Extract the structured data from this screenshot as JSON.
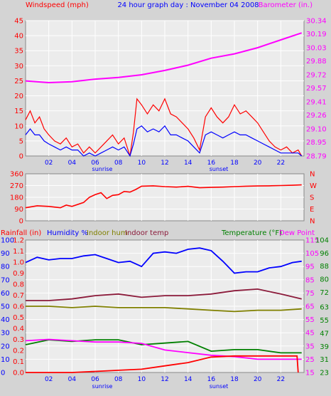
{
  "title": "24 hour graph day : November 04 2008",
  "colors": {
    "background": "#d4d4d4",
    "plot_bg": "#ececec",
    "grid": "#ffffff",
    "red": "#ff0000",
    "magenta": "#ff00ff",
    "blue": "#0000ff",
    "olive": "#808000",
    "maroon": "#8b1a3a",
    "green": "#008000",
    "pink": "#ff00ff"
  },
  "markers": {
    "sunrise": "sunrise",
    "sunset": "sunset"
  },
  "chart_data": [
    {
      "type": "line",
      "title": "24 hour graph day : November 04 2008",
      "x_ticks": [
        "02",
        "04",
        "06",
        "08",
        "10",
        "12",
        "14",
        "16",
        "18",
        "20",
        "22"
      ],
      "x_range": [
        0,
        24
      ],
      "left_axis": {
        "label": "Windspeed (mph)",
        "ticks": [
          "0",
          "5",
          "10",
          "15",
          "20",
          "25",
          "30",
          "35",
          "40",
          "45"
        ],
        "ylim": [
          0,
          45
        ]
      },
      "right_axis": {
        "label": "Barometer (in.)",
        "ticks": [
          "28.79",
          "28.95",
          "29.10",
          "29.26",
          "29.41",
          "29.57",
          "29.72",
          "29.88",
          "30.03",
          "30.19",
          "30.34"
        ],
        "ylim": [
          28.79,
          30.34
        ]
      },
      "series": [
        {
          "name": "Barometer (in.)",
          "axis": "right",
          "color": "#ff00ff",
          "points": [
            [
              0,
              29.65
            ],
            [
              2,
              29.63
            ],
            [
              4,
              29.64
            ],
            [
              6,
              29.67
            ],
            [
              8,
              29.69
            ],
            [
              10,
              29.72
            ],
            [
              12,
              29.77
            ],
            [
              14,
              29.83
            ],
            [
              16,
              29.91
            ],
            [
              18,
              29.96
            ],
            [
              20,
              30.03
            ],
            [
              22,
              30.12
            ],
            [
              23.8,
              30.2
            ]
          ]
        },
        {
          "color": "#ff0000",
          "axis": "left",
          "points": [
            [
              0,
              12
            ],
            [
              0.4,
              15
            ],
            [
              0.8,
              11
            ],
            [
              1.2,
              13
            ],
            [
              1.6,
              9
            ],
            [
              2,
              7
            ],
            [
              2.5,
              5
            ],
            [
              3,
              4
            ],
            [
              3.5,
              6
            ],
            [
              4,
              3
            ],
            [
              4.5,
              4
            ],
            [
              5,
              1
            ],
            [
              5.5,
              3
            ],
            [
              6,
              1
            ],
            [
              6.5,
              3
            ],
            [
              7,
              5
            ],
            [
              7.5,
              7
            ],
            [
              8,
              4
            ],
            [
              8.5,
              6
            ],
            [
              9,
              0
            ],
            [
              9.3,
              8
            ],
            [
              9.6,
              19
            ],
            [
              10,
              17
            ],
            [
              10.5,
              14
            ],
            [
              11,
              17
            ],
            [
              11.5,
              15
            ],
            [
              12,
              19
            ],
            [
              12.5,
              14
            ],
            [
              13,
              13
            ],
            [
              13.5,
              11
            ],
            [
              14,
              9
            ],
            [
              14.5,
              6
            ],
            [
              15,
              2
            ],
            [
              15.5,
              13
            ],
            [
              16,
              16
            ],
            [
              16.5,
              13
            ],
            [
              17,
              11
            ],
            [
              17.5,
              13
            ],
            [
              18,
              17
            ],
            [
              18.5,
              14
            ],
            [
              19,
              15
            ],
            [
              19.5,
              13
            ],
            [
              20,
              11
            ],
            [
              20.5,
              8
            ],
            [
              21,
              5
            ],
            [
              21.5,
              3
            ],
            [
              22,
              2
            ],
            [
              22.5,
              3
            ],
            [
              23,
              1
            ],
            [
              23.5,
              2
            ],
            [
              23.8,
              0
            ]
          ]
        },
        {
          "color": "#0000ff",
          "axis": "left",
          "points": [
            [
              0,
              7
            ],
            [
              0.4,
              9
            ],
            [
              0.8,
              7
            ],
            [
              1.2,
              7
            ],
            [
              1.6,
              5
            ],
            [
              2,
              4
            ],
            [
              2.5,
              3
            ],
            [
              3,
              2
            ],
            [
              3.5,
              3
            ],
            [
              4,
              2
            ],
            [
              4.5,
              2
            ],
            [
              5,
              0
            ],
            [
              5.5,
              1
            ],
            [
              6,
              0
            ],
            [
              6.5,
              1
            ],
            [
              7,
              2
            ],
            [
              7.5,
              3
            ],
            [
              8,
              2
            ],
            [
              8.5,
              3
            ],
            [
              9,
              0
            ],
            [
              9.3,
              4
            ],
            [
              9.6,
              9
            ],
            [
              10,
              10
            ],
            [
              10.5,
              8
            ],
            [
              11,
              9
            ],
            [
              11.5,
              8
            ],
            [
              12,
              10
            ],
            [
              12.5,
              7
            ],
            [
              13,
              7
            ],
            [
              13.5,
              6
            ],
            [
              14,
              5
            ],
            [
              14.5,
              3
            ],
            [
              15,
              1
            ],
            [
              15.5,
              7
            ],
            [
              16,
              8
            ],
            [
              16.5,
              7
            ],
            [
              17,
              6
            ],
            [
              17.5,
              7
            ],
            [
              18,
              8
            ],
            [
              18.5,
              7
            ],
            [
              19,
              7
            ],
            [
              19.5,
              6
            ],
            [
              20,
              5
            ],
            [
              20.5,
              4
            ],
            [
              21,
              3
            ],
            [
              21.5,
              2
            ],
            [
              22,
              1
            ],
            [
              22.5,
              1
            ],
            [
              23,
              1
            ],
            [
              23.5,
              1
            ],
            [
              23.8,
              0
            ]
          ]
        }
      ]
    },
    {
      "type": "line",
      "x_range": [
        0,
        24
      ],
      "left_axis": {
        "ticks": [
          "0",
          "90",
          "180",
          "270",
          "360"
        ],
        "ylim": [
          0,
          360
        ]
      },
      "right_axis": {
        "ticks": [
          "N",
          "W",
          "S",
          "E",
          "N"
        ]
      },
      "series": [
        {
          "color": "#ff0000",
          "points": [
            [
              0,
              100
            ],
            [
              1,
              115
            ],
            [
              2,
              110
            ],
            [
              3,
              100
            ],
            [
              3.5,
              120
            ],
            [
              4,
              110
            ],
            [
              5,
              140
            ],
            [
              5.5,
              180
            ],
            [
              6,
              200
            ],
            [
              6.5,
              215
            ],
            [
              7,
              170
            ],
            [
              7.5,
              195
            ],
            [
              8,
              200
            ],
            [
              8.5,
              225
            ],
            [
              9,
              220
            ],
            [
              9.5,
              240
            ],
            [
              10,
              265
            ],
            [
              11,
              268
            ],
            [
              12,
              262
            ],
            [
              13,
              258
            ],
            [
              14,
              264
            ],
            [
              15,
              253
            ],
            [
              16,
              256
            ],
            [
              17,
              258
            ],
            [
              18,
              262
            ],
            [
              19,
              265
            ],
            [
              20,
              267
            ],
            [
              21,
              268
            ],
            [
              22,
              270
            ],
            [
              23,
              272
            ],
            [
              23.8,
              275
            ]
          ]
        }
      ]
    },
    {
      "type": "line",
      "x_range": [
        0,
        24
      ],
      "left_axis_rain": {
        "label": "Rainfall (in)",
        "ticks": [
          "0.0",
          "0.1",
          "0.2",
          "0.3",
          "0.4",
          "0.5",
          "0.6",
          "0.7",
          "0.8",
          "0.9",
          "1.0",
          "1.1",
          "1.2"
        ],
        "ylim": [
          0,
          1.2
        ]
      },
      "left_axis_humidity": {
        "label": "Humidity %",
        "ticks": [
          "0",
          "10",
          "20",
          "30",
          "40",
          "50",
          "60",
          "70",
          "80",
          "90",
          "100"
        ],
        "ylim": [
          0,
          100
        ]
      },
      "right_axis_temp": {
        "label": "Temperature (°F)",
        "ticks": [
          "23",
          "31",
          "39",
          "47",
          "55",
          "63",
          "72",
          "80",
          "88",
          "96",
          "104"
        ],
        "ylim": [
          23,
          104
        ]
      },
      "right_axis_dew": {
        "label": "Dew Point",
        "ticks": [
          "15",
          "25",
          "35",
          "45",
          "55",
          "65",
          "75",
          "85",
          "95",
          "105",
          "115"
        ],
        "ylim": [
          15,
          115
        ]
      },
      "legend": [
        "Humidity %",
        "Indoor hum",
        "Indoor temp",
        "Temperature (°F)",
        "Dew Point"
      ],
      "series": [
        {
          "name": "Humidity %",
          "color": "#0000ff",
          "axis": "humidity",
          "points": [
            [
              0,
              83
            ],
            [
              1,
              87
            ],
            [
              2,
              85
            ],
            [
              3,
              86
            ],
            [
              4,
              86
            ],
            [
              5,
              88
            ],
            [
              6,
              89
            ],
            [
              7,
              86
            ],
            [
              8,
              83
            ],
            [
              9,
              84
            ],
            [
              10,
              80
            ],
            [
              11,
              90
            ],
            [
              12,
              91
            ],
            [
              13,
              90
            ],
            [
              14,
              93
            ],
            [
              15,
              94
            ],
            [
              16,
              92
            ],
            [
              17,
              84
            ],
            [
              18,
              75
            ],
            [
              19,
              76
            ],
            [
              20,
              76
            ],
            [
              21,
              79
            ],
            [
              22,
              80
            ],
            [
              23,
              83
            ],
            [
              23.8,
              84
            ]
          ]
        },
        {
          "name": "Indoor hum",
          "color": "#808000",
          "axis": "humidity",
          "points": [
            [
              0,
              50
            ],
            [
              2,
              50
            ],
            [
              4,
              49
            ],
            [
              6,
              50
            ],
            [
              8,
              49
            ],
            [
              10,
              49
            ],
            [
              12,
              49
            ],
            [
              14,
              48
            ],
            [
              16,
              47
            ],
            [
              18,
              46
            ],
            [
              20,
              47
            ],
            [
              22,
              47
            ],
            [
              23.8,
              48
            ]
          ]
        },
        {
          "name": "Indoor temp",
          "color": "#8b1a3a",
          "axis": "temp",
          "points": [
            [
              0,
              67
            ],
            [
              2,
              67
            ],
            [
              4,
              68
            ],
            [
              6,
              70
            ],
            [
              8,
              71
            ],
            [
              10,
              69
            ],
            [
              12,
              70
            ],
            [
              14,
              70
            ],
            [
              16,
              71
            ],
            [
              18,
              73
            ],
            [
              20,
              74
            ],
            [
              22,
              71
            ],
            [
              23.8,
              68
            ]
          ]
        },
        {
          "name": "Temperature (°F)",
          "color": "#008000",
          "axis": "temp",
          "points": [
            [
              0,
              40
            ],
            [
              2,
              43
            ],
            [
              4,
              42
            ],
            [
              6,
              43
            ],
            [
              8,
              43
            ],
            [
              10,
              40
            ],
            [
              12,
              41
            ],
            [
              14,
              42
            ],
            [
              16,
              36
            ],
            [
              18,
              37
            ],
            [
              20,
              37
            ],
            [
              22,
              35
            ],
            [
              23.8,
              35
            ]
          ]
        },
        {
          "name": "Dew Point",
          "color": "#ff00ff",
          "axis": "dew",
          "points": [
            [
              0,
              39
            ],
            [
              2,
              40
            ],
            [
              4,
              39
            ],
            [
              6,
              38
            ],
            [
              8,
              38
            ],
            [
              10,
              37
            ],
            [
              12,
              32
            ],
            [
              14,
              30
            ],
            [
              16,
              28
            ],
            [
              18,
              27
            ],
            [
              20,
              25
            ],
            [
              22,
              25
            ],
            [
              23.8,
              25
            ]
          ]
        },
        {
          "color": "#ff0000",
          "axis": "rain",
          "points": [
            [
              0,
              0
            ],
            [
              4,
              0
            ],
            [
              6,
              0.01
            ],
            [
              8,
              0.02
            ],
            [
              10,
              0.03
            ],
            [
              12,
              0.06
            ],
            [
              14,
              0.09
            ],
            [
              16,
              0.14
            ],
            [
              18,
              0.15
            ],
            [
              20,
              0.15
            ],
            [
              22,
              0.15
            ],
            [
              23.4,
              0.15
            ],
            [
              23.5,
              0.0
            ]
          ]
        }
      ]
    }
  ]
}
